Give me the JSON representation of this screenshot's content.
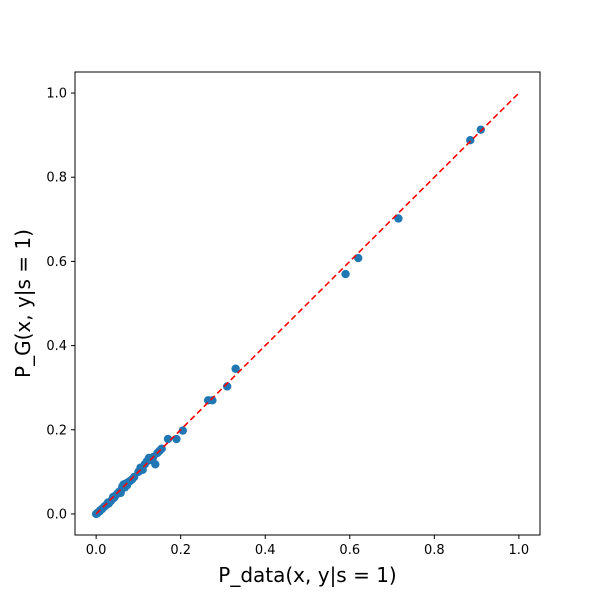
{
  "chart_data": {
    "type": "scatter",
    "title": "",
    "xlabel": "P_data(x, y|s = 1)",
    "ylabel": "P_G(x, y|s = 1)",
    "xlim": [
      -0.05,
      1.05
    ],
    "ylim": [
      -0.05,
      1.05
    ],
    "xticks": [
      0.0,
      0.2,
      0.4,
      0.6,
      0.8,
      1.0
    ],
    "yticks": [
      0.0,
      0.2,
      0.4,
      0.6,
      0.8,
      1.0
    ],
    "xtick_labels": [
      "0.0",
      "0.2",
      "0.4",
      "0.6",
      "0.8",
      "1.0"
    ],
    "ytick_labels": [
      "0.0",
      "0.2",
      "0.4",
      "0.6",
      "0.8",
      "1.0"
    ],
    "grid": false,
    "point_color": "#1f77b4",
    "reference_line": {
      "x": [
        0.0,
        1.0
      ],
      "y": [
        0.0,
        1.0
      ],
      "color": "#ff0000",
      "style": "dashed"
    },
    "points": [
      [
        0.0,
        0.0
      ],
      [
        0.003,
        0.002
      ],
      [
        0.005,
        0.004
      ],
      [
        0.008,
        0.006
      ],
      [
        0.01,
        0.009
      ],
      [
        0.013,
        0.011
      ],
      [
        0.015,
        0.013
      ],
      [
        0.02,
        0.018
      ],
      [
        0.025,
        0.022
      ],
      [
        0.028,
        0.027
      ],
      [
        0.03,
        0.025
      ],
      [
        0.035,
        0.031
      ],
      [
        0.04,
        0.04
      ],
      [
        0.042,
        0.038
      ],
      [
        0.045,
        0.043
      ],
      [
        0.05,
        0.048
      ],
      [
        0.055,
        0.053
      ],
      [
        0.058,
        0.05
      ],
      [
        0.06,
        0.058
      ],
      [
        0.062,
        0.065
      ],
      [
        0.065,
        0.07
      ],
      [
        0.068,
        0.063
      ],
      [
        0.07,
        0.072
      ],
      [
        0.073,
        0.068
      ],
      [
        0.075,
        0.075
      ],
      [
        0.08,
        0.078
      ],
      [
        0.085,
        0.082
      ],
      [
        0.09,
        0.088
      ],
      [
        0.1,
        0.1
      ],
      [
        0.105,
        0.11
      ],
      [
        0.11,
        0.105
      ],
      [
        0.115,
        0.118
      ],
      [
        0.12,
        0.125
      ],
      [
        0.125,
        0.133
      ],
      [
        0.13,
        0.128
      ],
      [
        0.135,
        0.135
      ],
      [
        0.14,
        0.118
      ],
      [
        0.145,
        0.145
      ],
      [
        0.15,
        0.15
      ],
      [
        0.155,
        0.155
      ],
      [
        0.17,
        0.178
      ],
      [
        0.19,
        0.178
      ],
      [
        0.205,
        0.198
      ],
      [
        0.265,
        0.27
      ],
      [
        0.275,
        0.27
      ],
      [
        0.31,
        0.303
      ],
      [
        0.33,
        0.345
      ],
      [
        0.59,
        0.57
      ],
      [
        0.62,
        0.608
      ],
      [
        0.715,
        0.702
      ],
      [
        0.885,
        0.888
      ],
      [
        0.91,
        0.913
      ]
    ]
  }
}
